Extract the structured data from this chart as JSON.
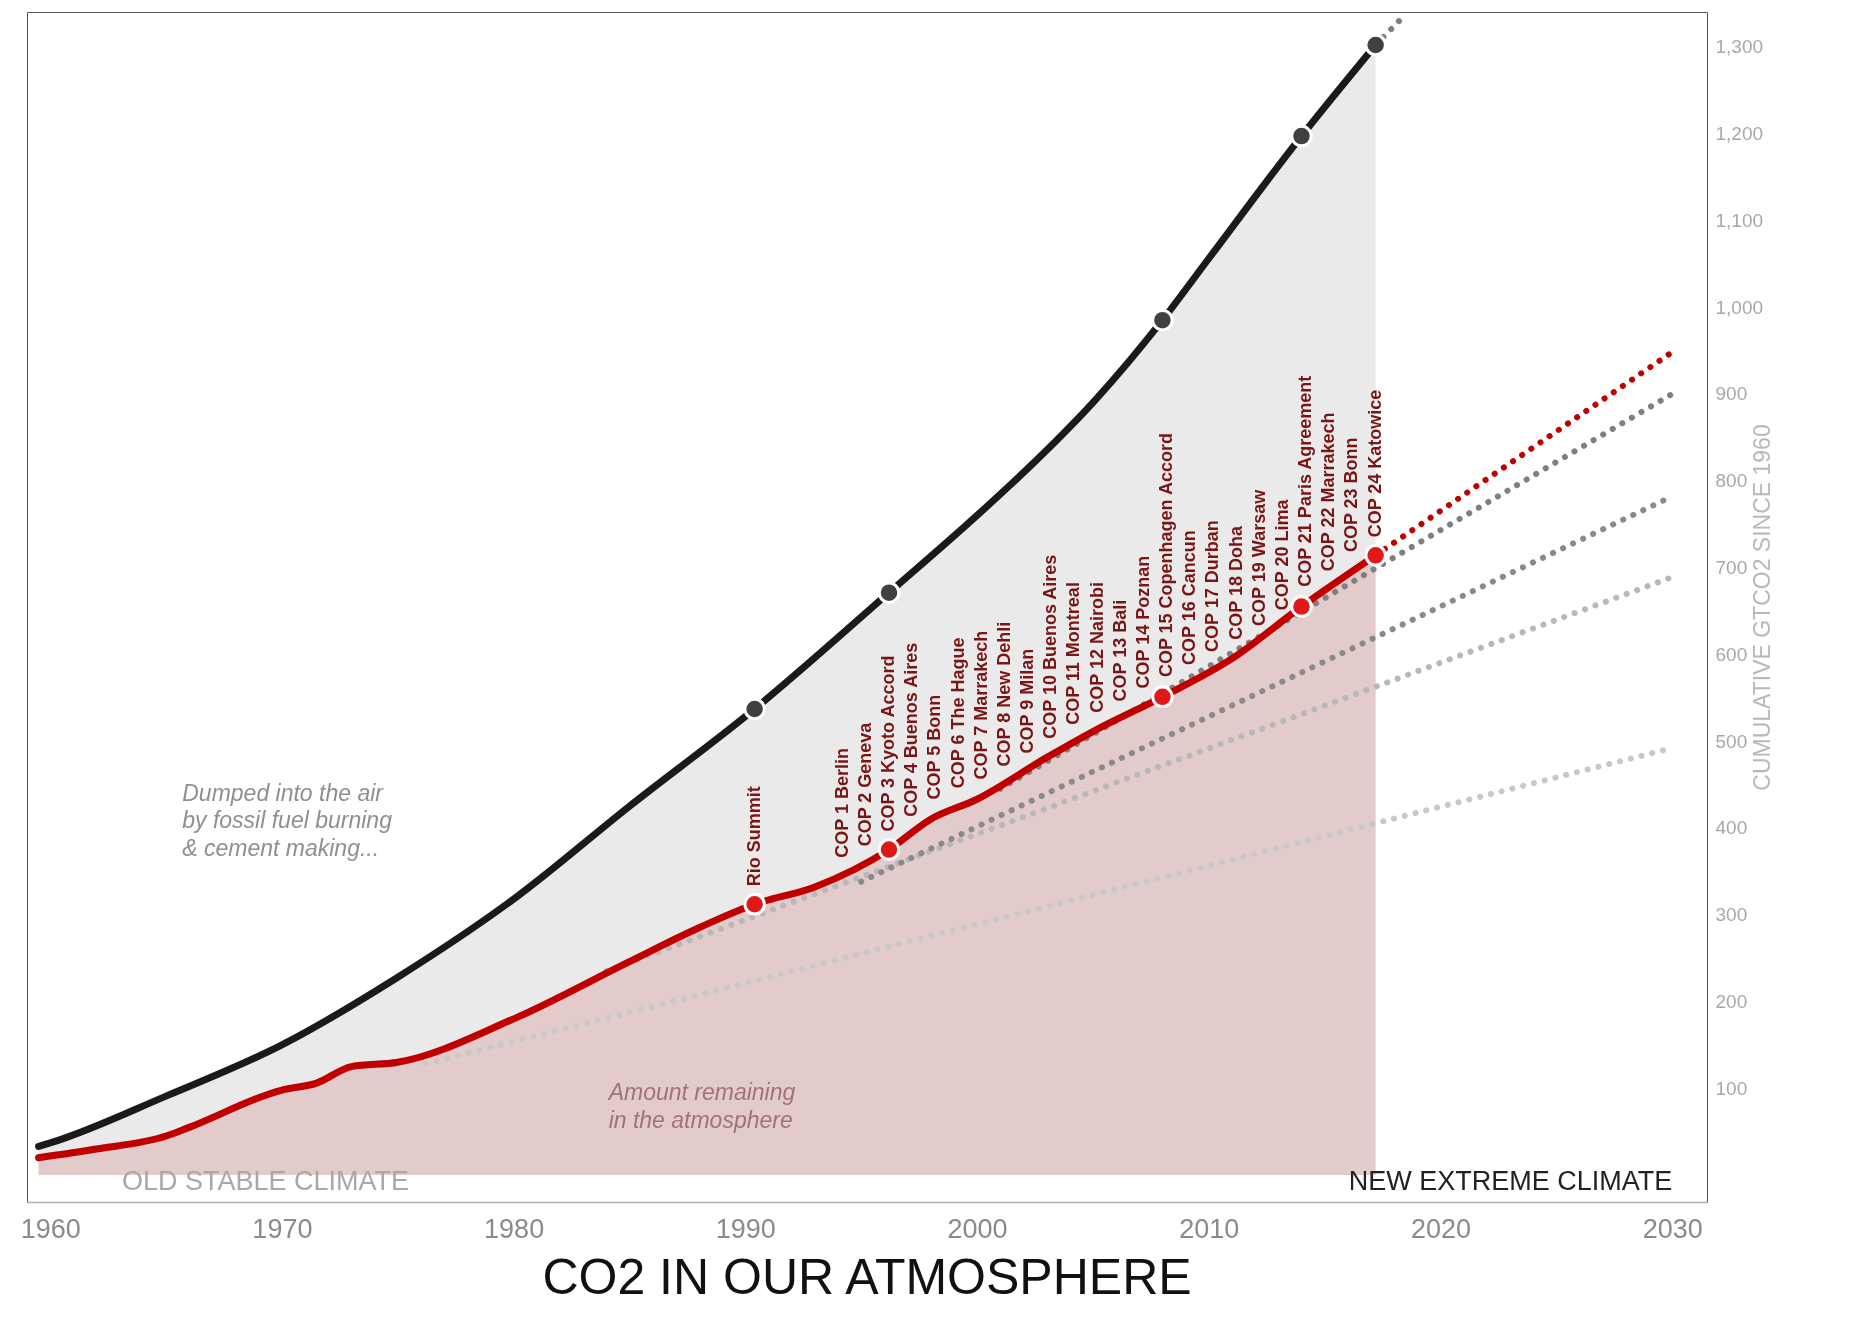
{
  "chart_data": {
    "type": "line",
    "title": "CO2 IN OUR ATMOSPHERE",
    "ylabel": "CUMULATIVE GTCO2 SINCE 1960",
    "xlim": [
      1959,
      2031.5
    ],
    "xticks": [
      1960,
      1970,
      1980,
      1990,
      2000,
      2010,
      2020,
      2030
    ],
    "ylim": [
      -31,
      1340
    ],
    "yticks": [
      100,
      200,
      300,
      400,
      500,
      600,
      700,
      800,
      900,
      {
        "value": 1000,
        "label": "1,000"
      },
      {
        "value": 1100,
        "label": "1,100"
      },
      {
        "value": 1200,
        "label": "1,200"
      },
      {
        "value": 1300,
        "label": "1,300"
      }
    ],
    "series": [
      {
        "color": "#c8c8c8",
        "line_style": "dotted",
        "x": [
          1976.2,
          2030
        ],
        "values": [
          128,
          492
        ]
      },
      {
        "color": "#b8b8b8",
        "line_style": "dotted",
        "x": [
          1984,
          2030
        ],
        "values": [
          235,
          689
        ]
      },
      {
        "color": "#8a8a8a",
        "line_style": "dotted",
        "x": [
          1995,
          2030
        ],
        "values": [
          338,
          782
        ]
      },
      {
        "color": "#7f7f7f",
        "line_style": "dotted",
        "x": [
          2001,
          2030
        ],
        "values": [
          445,
          900
        ]
      },
      {
        "color": "#c00000",
        "line_style": "dotted",
        "x": [
          2017.2,
          2030.1
        ],
        "values": [
          714,
          950
        ]
      },
      {
        "color": "#808080",
        "line_style": "dotted",
        "x": [
          2017.2,
          2018.3
        ],
        "values": [
          1302,
          1332
        ]
      },
      {
        "type": "area",
        "color": "#1a1a1a",
        "x": [
          1959.5,
          1960,
          1965,
          1970,
          1975,
          1980,
          1985,
          1990.4,
          1996.2,
          2000,
          2003,
          2005,
          2008,
          2010,
          2014,
          2017.2
        ],
        "values": [
          33,
          37,
          91,
          150,
          228,
          318,
          425,
          537,
          671,
          760,
          835,
          890,
          985,
          1056,
          1197,
          1302
        ]
      },
      {
        "type": "area",
        "color": "#c00000",
        "x": [
          1959.5,
          1962,
          1965,
          1966,
          1970,
          1971.5,
          1973,
          1975,
          1980,
          1985,
          1988,
          1990.4,
          1993,
          1996.2,
          1998,
          2000,
          2003,
          2005,
          2008,
          2011,
          2014,
          2017.2
        ],
        "values": [
          20,
          30,
          45,
          55,
          98,
          106,
          125,
          130,
          180,
          246,
          285,
          312,
          332,
          375,
          410,
          433,
          481,
          511,
          551,
          595,
          655,
          714
        ]
      },
      {
        "type": "scatter",
        "color": "#404040",
        "marker": "circle",
        "x": [
          1990.4,
          1996.2,
          2008,
          2014,
          2017.2
        ],
        "values": [
          537,
          671,
          985,
          1197,
          1302
        ]
      },
      {
        "type": "scatter",
        "color": "#e01818",
        "marker": "circle",
        "x": [
          1990.4,
          1996.2,
          2008,
          2014,
          2017.2
        ],
        "values": [
          312,
          375,
          551,
          655,
          714
        ]
      }
    ],
    "annotations": [
      "Dumped into the air\nby fossil fuel burning\n& cement making...",
      "Amount remaining\nin the atmosphere",
      "OLD STABLE CLIMATE",
      "NEW EXTREME CLIMATE",
      {
        "text": "Rio Summit",
        "x": 1990.4,
        "y": 312
      },
      {
        "text": "COP 1 Berlin",
        "x": 1994.2,
        "y": 345
      },
      {
        "text": "COP 2 Geneva",
        "x": 1995.2,
        "y": 358
      },
      {
        "text": "COP 3 Kyoto Accord",
        "x": 1996.2,
        "y": 375
      },
      {
        "text": "COP 4 Buenos Aires",
        "x": 1997.2,
        "y": 392
      },
      {
        "text": "COP 5 Bonn",
        "x": 1998.2,
        "y": 412
      },
      {
        "text": "COP 6 The Hague",
        "x": 1999.2,
        "y": 425
      },
      {
        "text": "COP 7 Marrakech",
        "x": 2000.2,
        "y": 435
      },
      {
        "text": "COP 8 New Dehli",
        "x": 2001.2,
        "y": 450
      },
      {
        "text": "COP 9 Milan",
        "x": 2002.2,
        "y": 465
      },
      {
        "text": "COP 10 Buenos Aires",
        "x": 2003.2,
        "y": 482
      },
      {
        "text": "COP 11 Montreal",
        "x": 2004.2,
        "y": 498
      },
      {
        "text": "COP 12 Nairobi",
        "x": 2005.2,
        "y": 512
      },
      {
        "text": "COP 13 Bali",
        "x": 2006.2,
        "y": 525
      },
      {
        "text": "COP 14 Poznan",
        "x": 2007.2,
        "y": 540
      },
      {
        "text": "COP 15 Copenhagen Accord",
        "x": 2008.2,
        "y": 553
      },
      {
        "text": "COP 16 Cancun",
        "x": 2009.2,
        "y": 567
      },
      {
        "text": "COP 17 Durban",
        "x": 2010.2,
        "y": 582
      },
      {
        "text": "COP 18 Doha",
        "x": 2011.2,
        "y": 596
      },
      {
        "text": "COP 19 Warsaw",
        "x": 2012.2,
        "y": 612
      },
      {
        "text": "COP 20 Lima",
        "x": 2013.2,
        "y": 630
      },
      {
        "text": "COP 21 Paris Agreement",
        "x": 2014.2,
        "y": 657
      },
      {
        "text": "COP 22 Marrakech",
        "x": 2015.2,
        "y": 675
      },
      {
        "text": "COP 23 Bonn",
        "x": 2016.2,
        "y": 697
      },
      {
        "text": "COP 24 Katowice",
        "x": 2017.2,
        "y": 714
      }
    ]
  }
}
